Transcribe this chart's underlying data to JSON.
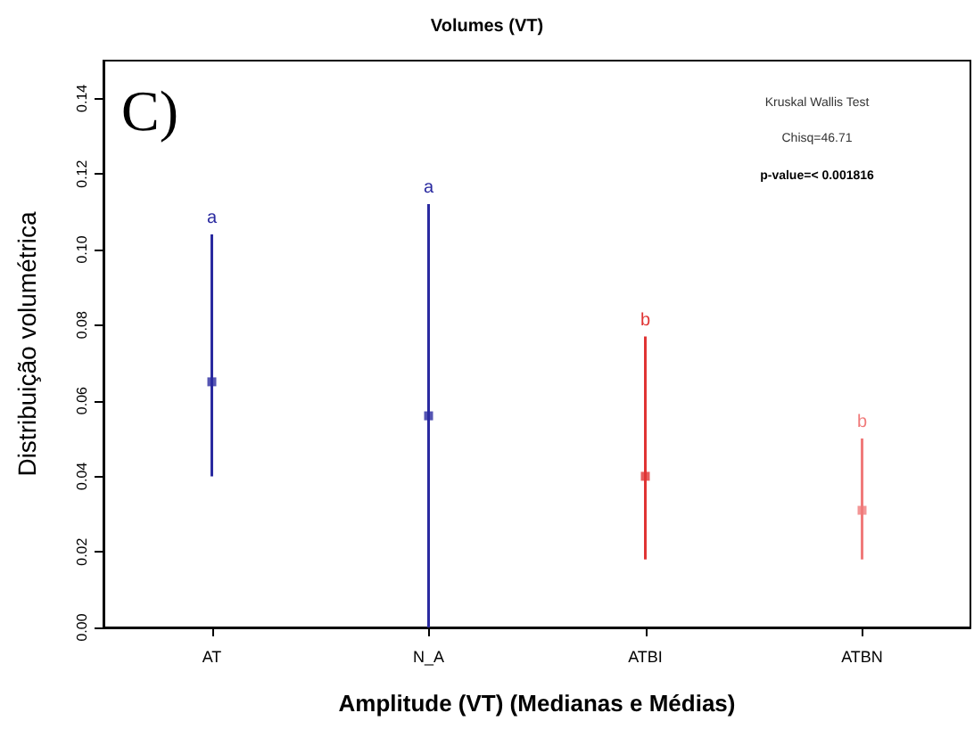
{
  "chart_data": {
    "type": "scatter",
    "title": "Volumes (VT)",
    "xlabel": "Amplitude (VT) (Medianas e Médias)",
    "ylabel": "Distribuição volumétrica",
    "categories": [
      "AT",
      "N_A",
      "ATBI",
      "ATBN"
    ],
    "values": [
      0.065,
      0.056,
      0.04,
      0.031
    ],
    "errors": [
      [
        0.04,
        0.104
      ],
      [
        0.0,
        0.112
      ],
      [
        0.018,
        0.077
      ],
      [
        0.018,
        0.05
      ]
    ],
    "colors": [
      "#2a2aa0",
      "#2a2aa0",
      "#e03434",
      "#f07a7a"
    ],
    "marker": "square",
    "ylim": [
      0,
      0.15
    ],
    "yticks": [
      {
        "value": 0,
        "label": "0.00"
      },
      0.02,
      0.04,
      0.06,
      0.08,
      {
        "value": 0.1,
        "label": "0.10"
      },
      0.12,
      0.14
    ],
    "grid": false,
    "annotations": [
      "C)",
      "Kruskal Wallis Test",
      "Chisq=46.71",
      "p-value=< 0.001816",
      "a",
      "a",
      "b",
      "b"
    ]
  }
}
